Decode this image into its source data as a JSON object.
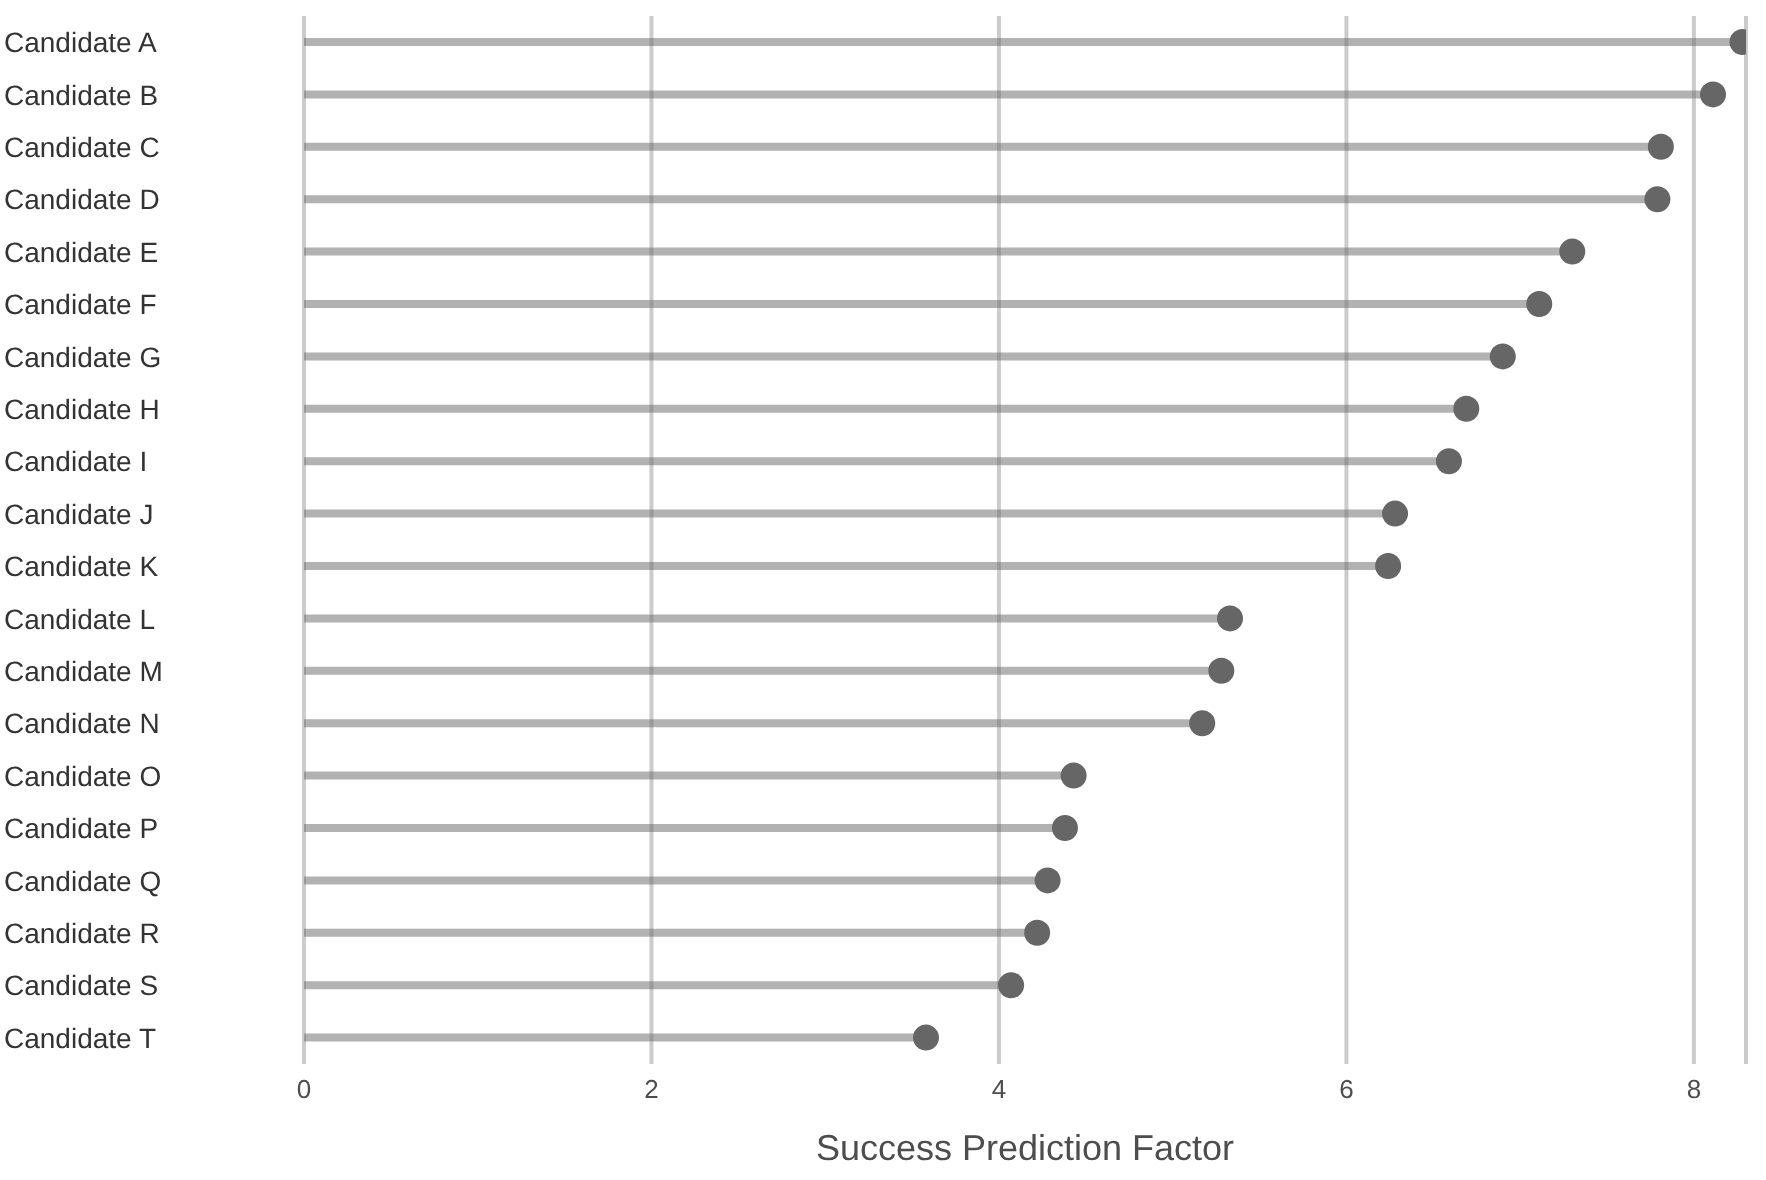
{
  "chart_data": {
    "type": "lollipop",
    "orientation": "horizontal",
    "xlabel": "Success Prediction Factor",
    "categories": [
      "Candidate A",
      "Candidate B",
      "Candidate C",
      "Candidate D",
      "Candidate E",
      "Candidate F",
      "Candidate G",
      "Candidate H",
      "Candidate I",
      "Candidate J",
      "Candidate K",
      "Candidate L",
      "Candidate M",
      "Candidate N",
      "Candidate O",
      "Candidate P",
      "Candidate Q",
      "Candidate R",
      "Candidate S",
      "Candidate T"
    ],
    "values": [
      8.28,
      8.11,
      7.81,
      7.79,
      7.3,
      7.11,
      6.9,
      6.69,
      6.59,
      6.28,
      6.24,
      5.33,
      5.28,
      5.17,
      4.43,
      4.38,
      4.28,
      4.22,
      4.07,
      3.58
    ],
    "color": "#666666",
    "xlim": [
      0,
      8.3
    ],
    "xticks": [
      0,
      2,
      4,
      6,
      8
    ],
    "grid": "x",
    "marker": "circle"
  }
}
